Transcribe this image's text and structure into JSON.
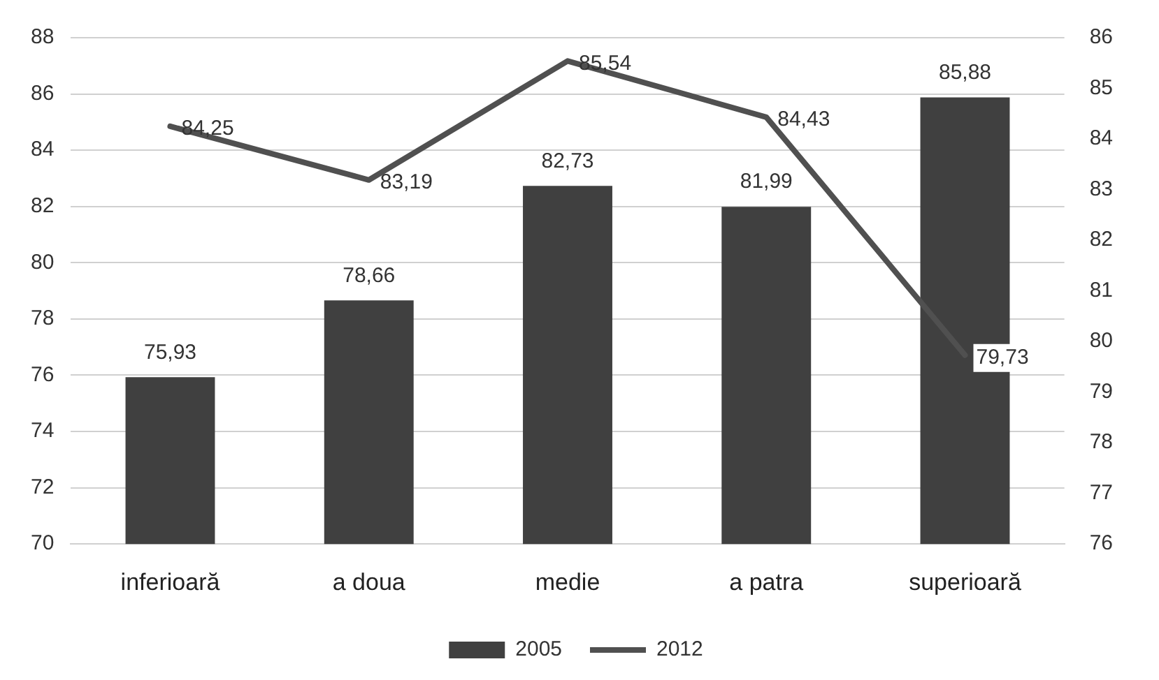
{
  "chart_data": {
    "type": "bar",
    "categories": [
      "inferioară",
      "a doua",
      "medie",
      "a patra",
      "superioară"
    ],
    "series": [
      {
        "name": "2005",
        "color": "#404040",
        "values": [
          75.93,
          78.66,
          82.73,
          81.99,
          85.88
        ],
        "value_labels": [
          "75,93",
          "78,66",
          "82,73",
          "81,99",
          "85,88"
        ]
      },
      {
        "name": "2012",
        "type": "line",
        "axis": "y2",
        "color": "#505050",
        "values": [
          84.25,
          83.19,
          85.54,
          84.43,
          79.73
        ],
        "value_labels": [
          "84,25",
          "83,19",
          "85,54",
          "84,43",
          "79,73"
        ]
      }
    ],
    "ylim": [
      70,
      88
    ],
    "yticks": [
      70,
      72,
      74,
      76,
      78,
      80,
      82,
      84,
      86,
      88
    ],
    "y2lim": [
      76,
      86
    ],
    "y2ticks": [
      76,
      77,
      78,
      79,
      80,
      81,
      82,
      83,
      84,
      85,
      86
    ],
    "grid": "y",
    "legend": "bottom",
    "marker": "none",
    "line_style": "solid"
  }
}
